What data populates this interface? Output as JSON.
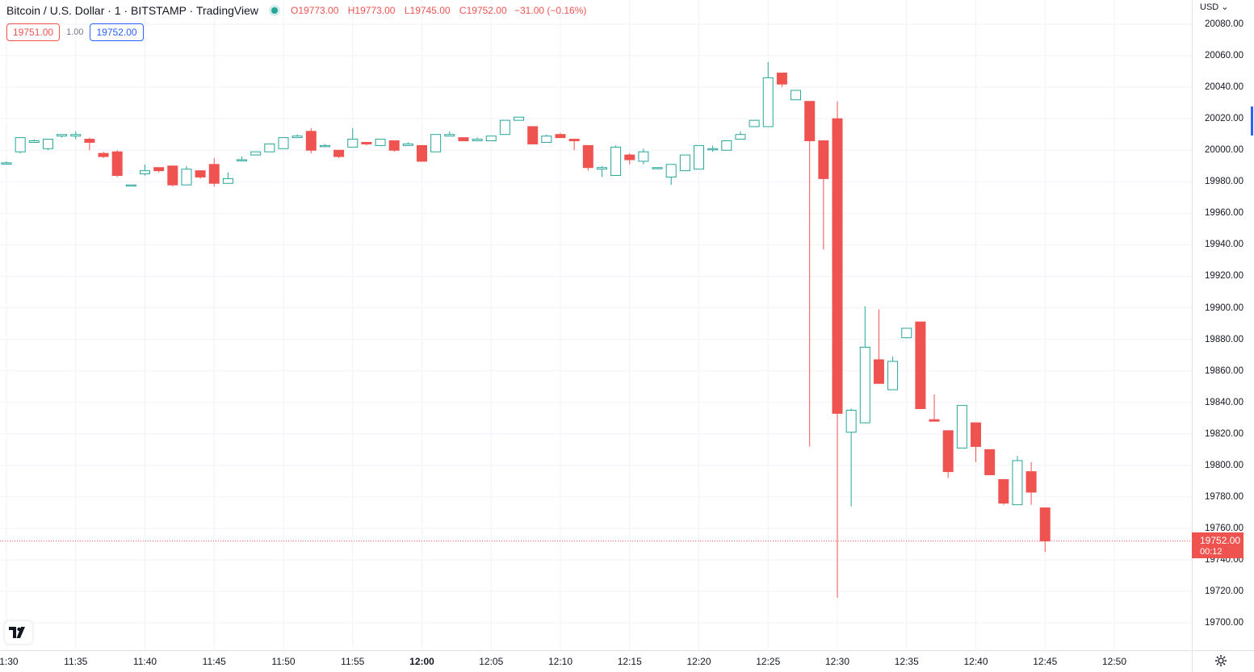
{
  "header": {
    "title": "Bitcoin / U.S. Dollar · 1 · BITSTAMP · TradingView",
    "ohlc": [
      {
        "k": "O",
        "v": "19773.00"
      },
      {
        "k": "H",
        "v": "19773.00"
      },
      {
        "k": "L",
        "v": "19745.00"
      },
      {
        "k": "C",
        "v": "19752.00"
      },
      {
        "k": "",
        "v": "−31.00 (−0.16%)"
      }
    ]
  },
  "quote": {
    "sell": "19751.00",
    "spread": "1.00",
    "buy": "19752.00"
  },
  "price_axis": {
    "currency": "USD",
    "last_price": "19752.00",
    "countdown": "00:12"
  },
  "colors": {
    "up": "#26a69a",
    "down": "#ef5350",
    "grid": "#f0f3fa"
  },
  "chart_data": {
    "type": "candlestick",
    "symbol": "Bitcoin / U.S. Dollar",
    "interval": "1",
    "exchange": "BITSTAMP",
    "ylim": [
      19690,
      20085
    ],
    "y_ticks": [
      20080,
      20060,
      20040,
      20020,
      20000,
      19980,
      19960,
      19940,
      19920,
      19900,
      19880,
      19860,
      19840,
      19820,
      19800,
      19780,
      19760,
      19740,
      19720,
      19700
    ],
    "x_ticks": [
      "11:30",
      "11:35",
      "11:40",
      "11:45",
      "11:50",
      "11:55",
      "12:00",
      "12:05",
      "12:10",
      "12:15",
      "12:20",
      "12:25",
      "12:30",
      "12:35",
      "12:40",
      "12:45",
      "12:50"
    ],
    "last_price": 19752,
    "candles": [
      {
        "t": "11:30",
        "o": 19992,
        "h": 19993,
        "l": 19991,
        "c": 19992
      },
      {
        "t": "11:31",
        "o": 19999,
        "h": 20008,
        "l": 19998,
        "c": 20008
      },
      {
        "t": "11:32",
        "o": 20005,
        "h": 20007,
        "l": 20005,
        "c": 20006
      },
      {
        "t": "11:33",
        "o": 20001,
        "h": 20007,
        "l": 20000,
        "c": 20007
      },
      {
        "t": "11:34",
        "o": 20009,
        "h": 20010,
        "l": 20008,
        "c": 20010
      },
      {
        "t": "11:35",
        "o": 20009,
        "h": 20012,
        "l": 20007,
        "c": 20010
      },
      {
        "t": "11:36",
        "o": 20007,
        "h": 20008,
        "l": 20000,
        "c": 20005
      },
      {
        "t": "11:37",
        "o": 19998,
        "h": 19999,
        "l": 19995,
        "c": 19996
      },
      {
        "t": "11:38",
        "o": 19999,
        "h": 20000,
        "l": 19983,
        "c": 19984
      },
      {
        "t": "11:39",
        "o": 19978,
        "h": 19978,
        "l": 19978,
        "c": 19978
      },
      {
        "t": "11:40",
        "o": 19985,
        "h": 19991,
        "l": 19984,
        "c": 19987
      },
      {
        "t": "11:41",
        "o": 19989,
        "h": 19989,
        "l": 19986,
        "c": 19987
      },
      {
        "t": "11:42",
        "o": 19990,
        "h": 19990,
        "l": 19977,
        "c": 19978
      },
      {
        "t": "11:43",
        "o": 19978,
        "h": 19990,
        "l": 19978,
        "c": 19988
      },
      {
        "t": "11:44",
        "o": 19987,
        "h": 19987,
        "l": 19982,
        "c": 19983
      },
      {
        "t": "11:45",
        "o": 19991,
        "h": 19995,
        "l": 19977,
        "c": 19979
      },
      {
        "t": "11:46",
        "o": 19979,
        "h": 19986,
        "l": 19979,
        "c": 19982
      },
      {
        "t": "11:47",
        "o": 19994,
        "h": 19996,
        "l": 19993,
        "c": 19994
      },
      {
        "t": "11:48",
        "o": 19997,
        "h": 19999,
        "l": 19997,
        "c": 19999
      },
      {
        "t": "11:49",
        "o": 19999,
        "h": 20004,
        "l": 19999,
        "c": 20004
      },
      {
        "t": "11:50",
        "o": 20001,
        "h": 20008,
        "l": 20001,
        "c": 20008
      },
      {
        "t": "11:51",
        "o": 20008,
        "h": 20010,
        "l": 20008,
        "c": 20009
      },
      {
        "t": "11:52",
        "o": 20012,
        "h": 20014,
        "l": 19998,
        "c": 20000
      },
      {
        "t": "11:53",
        "o": 20003,
        "h": 20004,
        "l": 20002,
        "c": 20003
      },
      {
        "t": "11:54",
        "o": 20000,
        "h": 20000,
        "l": 19995,
        "c": 19996
      },
      {
        "t": "11:55",
        "o": 20002,
        "h": 20014,
        "l": 20002,
        "c": 20007
      },
      {
        "t": "11:56",
        "o": 20005,
        "h": 20005,
        "l": 20003,
        "c": 20004
      },
      {
        "t": "11:57",
        "o": 20003,
        "h": 20007,
        "l": 20003,
        "c": 20007
      },
      {
        "t": "11:58",
        "o": 20006,
        "h": 20006,
        "l": 19999,
        "c": 20000
      },
      {
        "t": "11:59",
        "o": 20003,
        "h": 20005,
        "l": 20003,
        "c": 20004
      },
      {
        "t": "12:00",
        "o": 20003,
        "h": 20003,
        "l": 19993,
        "c": 19993
      },
      {
        "t": "12:01",
        "o": 19999,
        "h": 20010,
        "l": 19999,
        "c": 20010
      },
      {
        "t": "12:02",
        "o": 20009,
        "h": 20012,
        "l": 20009,
        "c": 20010
      },
      {
        "t": "12:03",
        "o": 20008,
        "h": 20008,
        "l": 20006,
        "c": 20006
      },
      {
        "t": "12:04",
        "o": 20006,
        "h": 20008,
        "l": 20006,
        "c": 20007
      },
      {
        "t": "12:05",
        "o": 20006,
        "h": 20009,
        "l": 20006,
        "c": 20009
      },
      {
        "t": "12:06",
        "o": 20010,
        "h": 20019,
        "l": 20010,
        "c": 20019
      },
      {
        "t": "12:07",
        "o": 20019,
        "h": 20021,
        "l": 20019,
        "c": 20021
      },
      {
        "t": "12:08",
        "o": 20015,
        "h": 20015,
        "l": 20004,
        "c": 20004
      },
      {
        "t": "12:09",
        "o": 20005,
        "h": 20010,
        "l": 20005,
        "c": 20009
      },
      {
        "t": "12:10",
        "o": 20010,
        "h": 20011,
        "l": 20008,
        "c": 20008
      },
      {
        "t": "12:11",
        "o": 20007,
        "h": 20007,
        "l": 20000,
        "c": 20006
      },
      {
        "t": "12:12",
        "o": 20003,
        "h": 20003,
        "l": 19987,
        "c": 19989
      },
      {
        "t": "12:13",
        "o": 19988,
        "h": 19990,
        "l": 19983,
        "c": 19989
      },
      {
        "t": "12:14",
        "o": 19984,
        "h": 20003,
        "l": 19984,
        "c": 20002
      },
      {
        "t": "12:15",
        "o": 19997,
        "h": 19998,
        "l": 19991,
        "c": 19994
      },
      {
        "t": "12:16",
        "o": 19993,
        "h": 20001,
        "l": 19991,
        "c": 19999
      },
      {
        "t": "12:17",
        "o": 19989,
        "h": 19989,
        "l": 19989,
        "c": 19989
      },
      {
        "t": "12:18",
        "o": 19983,
        "h": 19991,
        "l": 19978,
        "c": 19991
      },
      {
        "t": "12:19",
        "o": 19987,
        "h": 19997,
        "l": 19987,
        "c": 19997
      },
      {
        "t": "12:20",
        "o": 19988,
        "h": 20003,
        "l": 19988,
        "c": 20003
      },
      {
        "t": "12:21",
        "o": 20001,
        "h": 20003,
        "l": 19999,
        "c": 20001
      },
      {
        "t": "12:22",
        "o": 20000,
        "h": 20006,
        "l": 20000,
        "c": 20006
      },
      {
        "t": "12:23",
        "o": 20007,
        "h": 20012,
        "l": 20007,
        "c": 20010
      },
      {
        "t": "12:24",
        "o": 20015,
        "h": 20019,
        "l": 20015,
        "c": 20019
      },
      {
        "t": "12:25",
        "o": 20015,
        "h": 20056,
        "l": 20015,
        "c": 20046
      },
      {
        "t": "12:26",
        "o": 20049,
        "h": 20049,
        "l": 20040,
        "c": 20042
      },
      {
        "t": "12:27",
        "o": 20032,
        "h": 20038,
        "l": 20032,
        "c": 20038
      },
      {
        "t": "12:28",
        "o": 20031,
        "h": 20031,
        "l": 19812,
        "c": 20006
      },
      {
        "t": "12:29",
        "o": 20006,
        "h": 20006,
        "l": 19937,
        "c": 19982
      },
      {
        "t": "12:30",
        "o": 20020,
        "h": 20031,
        "l": 19716,
        "c": 19833
      },
      {
        "t": "12:31",
        "o": 19821,
        "h": 19836,
        "l": 19774,
        "c": 19835
      },
      {
        "t": "12:32",
        "o": 19827,
        "h": 19901,
        "l": 19827,
        "c": 19875
      },
      {
        "t": "12:33",
        "o": 19867,
        "h": 19899,
        "l": 19852,
        "c": 19852
      },
      {
        "t": "12:34",
        "o": 19848,
        "h": 19869,
        "l": 19848,
        "c": 19866
      },
      {
        "t": "12:35",
        "o": 19881,
        "h": 19887,
        "l": 19881,
        "c": 19887
      },
      {
        "t": "12:36",
        "o": 19891,
        "h": 19891,
        "l": 19836,
        "c": 19836
      },
      {
        "t": "12:37",
        "o": 19829,
        "h": 19845,
        "l": 19828,
        "c": 19828
      },
      {
        "t": "12:38",
        "o": 19822,
        "h": 19822,
        "l": 19792,
        "c": 19796
      },
      {
        "t": "12:39",
        "o": 19811,
        "h": 19838,
        "l": 19811,
        "c": 19838
      },
      {
        "t": "12:40",
        "o": 19827,
        "h": 19827,
        "l": 19802,
        "c": 19812
      },
      {
        "t": "12:41",
        "o": 19810,
        "h": 19810,
        "l": 19794,
        "c": 19794
      },
      {
        "t": "12:42",
        "o": 19791,
        "h": 19791,
        "l": 19775,
        "c": 19776
      },
      {
        "t": "12:43",
        "o": 19775,
        "h": 19806,
        "l": 19775,
        "c": 19803
      },
      {
        "t": "12:44",
        "o": 19796,
        "h": 19802,
        "l": 19775,
        "c": 19783
      },
      {
        "t": "12:45",
        "o": 19773,
        "h": 19773,
        "l": 19745,
        "c": 19752
      }
    ]
  }
}
